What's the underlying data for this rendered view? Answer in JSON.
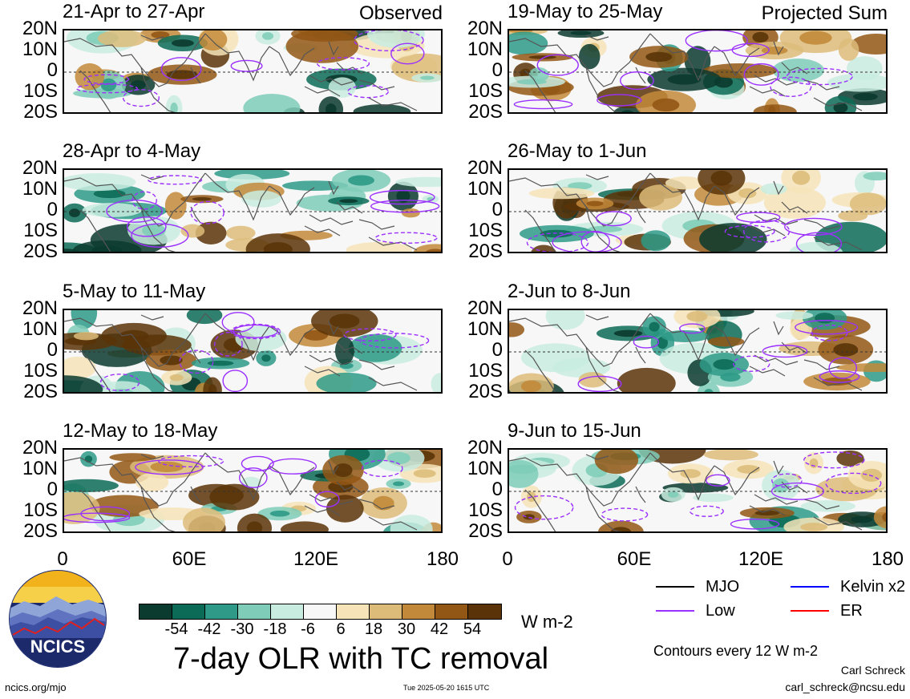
{
  "panels": [
    {
      "title": "21-Apr to 27-Apr",
      "tag": "Observed"
    },
    {
      "title": "19-May to 25-May",
      "tag": "Projected Sum"
    },
    {
      "title": "28-Apr to 4-May",
      "tag": ""
    },
    {
      "title": "26-May to 1-Jun",
      "tag": ""
    },
    {
      "title": "5-May to 11-May",
      "tag": ""
    },
    {
      "title": "2-Jun to 8-Jun",
      "tag": ""
    },
    {
      "title": "12-May to 18-May",
      "tag": ""
    },
    {
      "title": "9-Jun to 15-Jun",
      "tag": ""
    }
  ],
  "lat_labels": [
    "20N",
    "10N",
    "0",
    "10S",
    "20S"
  ],
  "lon_labels": [
    "0",
    "60E",
    "120E",
    "180"
  ],
  "colorbar": {
    "colors": [
      "#0b3a2e",
      "#0c6b57",
      "#2e9a87",
      "#7fcdb8",
      "#c9ece0",
      "#f7f7f7",
      "#f6e4b8",
      "#ddbc7a",
      "#c3893a",
      "#935715",
      "#5a3408"
    ],
    "labels": [
      "-54",
      "-42",
      "-30",
      "-18",
      "-6",
      "6",
      "18",
      "30",
      "42",
      "54"
    ],
    "units": "W m-2"
  },
  "main_title": "7-day OLR with TC removal",
  "legend": [
    {
      "label": "MJO",
      "color": "#000000"
    },
    {
      "label": "Kelvin x2",
      "color": "#0000ff"
    },
    {
      "label": "Low",
      "color": "#9b30ff"
    },
    {
      "label": "ER",
      "color": "#ff0000"
    }
  ],
  "contour_note": "Contours every 12 W m-2",
  "author": "Carl Schreck",
  "email": "carl_schreck@ncsu.edu",
  "site": "ncics.org/mjo",
  "timestamp": "Tue 2025-05-20 1615 UTC",
  "logo_text": "NCICS"
}
